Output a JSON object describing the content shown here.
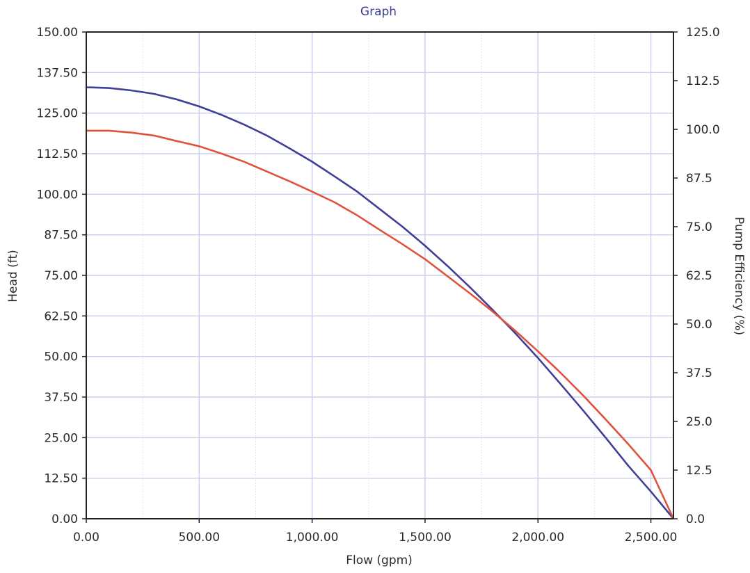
{
  "window": {
    "title": "Graph"
  },
  "colors": {
    "title": "#3b3f8f",
    "text": "#2a2a2a",
    "axis": "#222222",
    "grid": "#c9cfee",
    "head_series": "#3f3f96",
    "efficiency_series": "#e0523b"
  },
  "chart_data": {
    "type": "line",
    "title": "Graph",
    "xlabel": "Flow (gpm)",
    "ylabel": "Head (ft)",
    "y2label": "Pump Efficiency (%)",
    "xlim": [
      0,
      2600
    ],
    "ylim": [
      0,
      150
    ],
    "y2lim": [
      0,
      125
    ],
    "grid": true,
    "x_ticks": [
      "0.00",
      "500.00",
      "1,000.00",
      "1,500.00",
      "2,000.00",
      "2,500.00"
    ],
    "y_ticks": [
      "0.00",
      "12.50",
      "25.00",
      "37.50",
      "50.00",
      "62.50",
      "75.00",
      "87.50",
      "100.00",
      "112.50",
      "125.00",
      "137.50",
      "150.00"
    ],
    "y2_ticks": [
      "0.0",
      "12.5",
      "25.0",
      "37.5",
      "50.0",
      "62.5",
      "75.0",
      "87.5",
      "100.0",
      "112.5",
      "125.0"
    ],
    "series": [
      {
        "axis": "y2",
        "x": [
          0,
          100,
          200,
          300,
          400,
          500,
          600,
          700,
          800,
          900,
          1000,
          1100,
          1200,
          1300,
          1400,
          1500,
          1600,
          1700,
          1800,
          1900,
          2000,
          2100,
          2200,
          2300,
          2400,
          2500,
          2600
        ],
        "values": [
          110.8,
          110.6,
          110.0,
          109.1,
          107.7,
          105.9,
          103.7,
          101.2,
          98.4,
          95.1,
          91.7,
          87.9,
          84.0,
          79.5,
          75.0,
          70.1,
          64.9,
          59.4,
          53.6,
          47.6,
          41.3,
          34.6,
          27.8,
          20.8,
          13.6,
          7.0,
          0.0
        ]
      },
      {
        "axis": "y",
        "x": [
          0,
          100,
          200,
          300,
          400,
          500,
          600,
          700,
          800,
          900,
          1000,
          1100,
          1200,
          1300,
          1400,
          1500,
          1600,
          1700,
          1800,
          1900,
          2000,
          2100,
          2200,
          2300,
          2400,
          2500,
          2600
        ],
        "values": [
          119.6,
          119.6,
          119.0,
          118.1,
          116.4,
          114.8,
          112.5,
          110.0,
          107.0,
          104.0,
          100.8,
          97.5,
          93.5,
          89.0,
          84.6,
          80.0,
          74.7,
          69.4,
          63.8,
          57.9,
          51.6,
          45.0,
          38.0,
          30.6,
          23.0,
          15.0,
          0.0
        ]
      }
    ]
  }
}
